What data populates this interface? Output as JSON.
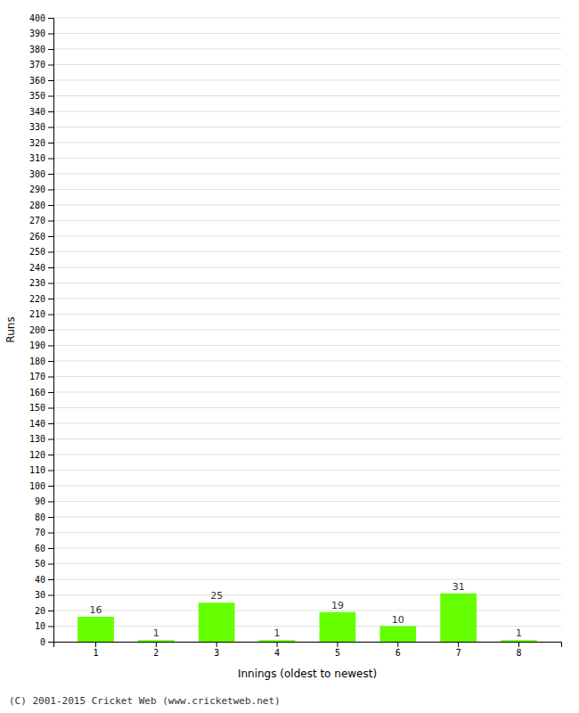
{
  "chart_data": {
    "type": "bar",
    "categories": [
      "1",
      "2",
      "3",
      "4",
      "5",
      "6",
      "7",
      "8"
    ],
    "values": [
      16,
      1,
      25,
      1,
      19,
      10,
      31,
      1
    ],
    "color": "#66ff00",
    "xlabel": "Innings (oldest to newest)",
    "ylabel": "Runs",
    "ylim": [
      0,
      400
    ],
    "yticks": [
      0,
      10,
      20,
      30,
      40,
      50,
      60,
      70,
      80,
      90,
      100,
      110,
      120,
      130,
      140,
      150,
      160,
      170,
      180,
      190,
      200,
      210,
      220,
      230,
      240,
      250,
      260,
      270,
      280,
      290,
      300,
      310,
      320,
      330,
      340,
      350,
      360,
      370,
      380,
      390,
      400
    ],
    "grid": true,
    "data_labels": true,
    "footer": "(C) 2001-2015 Cricket Web (www.cricketweb.net)"
  }
}
